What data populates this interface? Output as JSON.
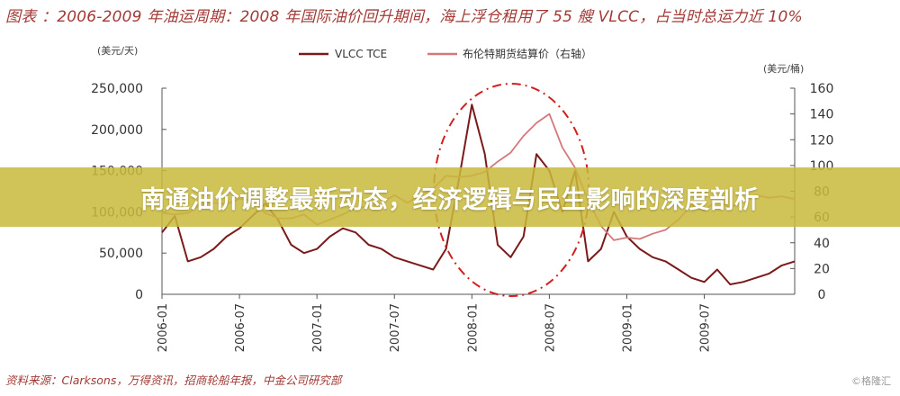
{
  "caption": "图表 ：2006-2009 年油运周期：2008 年国际油价回升期间，海上浮仓租用了 55 艘 VLCC，占当时总运力近 10%",
  "source": "资料来源：Clarksons，万得资讯，招商轮船年报，中金公司研究部",
  "watermark": "©格隆汇",
  "banner": "南通油价调整最新动态，经济逻辑与民生影响的深度剖析",
  "colors": {
    "tce": "#7b1a1a",
    "brent": "#d4787a",
    "highlight": "#d21e1e",
    "text": "#a23a36"
  },
  "chart_data": {
    "type": "line",
    "y_unit_left": "(美元/天)",
    "y_unit_right": "(美元/桶)",
    "ylim_left": [
      0,
      250000
    ],
    "ylim_right": [
      0,
      160
    ],
    "yticks_left": [
      "0",
      "50,000",
      "100,000",
      "150,000",
      "200,000",
      "250,000"
    ],
    "yticks_right": [
      "0",
      "20",
      "40",
      "60",
      "80",
      "100",
      "120",
      "140",
      "160"
    ],
    "x_ticks": [
      "2006-01",
      "2006-07",
      "2007-01",
      "2007-07",
      "2008-01",
      "2008-07",
      "2009-01",
      "2009-07"
    ],
    "x_range": [
      "2006-01",
      "2010-02"
    ],
    "legend_position": "top",
    "series": [
      {
        "name": "VLCC TCE",
        "axis": "left",
        "x": [
          "2006-01",
          "2006-02",
          "2006-03",
          "2006-04",
          "2006-05",
          "2006-06",
          "2006-07",
          "2006-08",
          "2006-09",
          "2006-10",
          "2006-11",
          "2006-12",
          "2007-01",
          "2007-02",
          "2007-03",
          "2007-04",
          "2007-05",
          "2007-06",
          "2007-07",
          "2007-08",
          "2007-09",
          "2007-10",
          "2007-11",
          "2007-12",
          "2008-01",
          "2008-02",
          "2008-03",
          "2008-04",
          "2008-05",
          "2008-06",
          "2008-07",
          "2008-08",
          "2008-09",
          "2008-10",
          "2008-11",
          "2008-12",
          "2009-01",
          "2009-02",
          "2009-03",
          "2009-04",
          "2009-05",
          "2009-06",
          "2009-07",
          "2009-08",
          "2009-09",
          "2009-10",
          "2009-11",
          "2009-12",
          "2010-01",
          "2010-02"
        ],
        "values": [
          75000,
          95000,
          40000,
          45000,
          55000,
          70000,
          80000,
          95000,
          110000,
          90000,
          60000,
          50000,
          55000,
          70000,
          80000,
          75000,
          60000,
          55000,
          45000,
          40000,
          35000,
          30000,
          55000,
          140000,
          230000,
          170000,
          60000,
          45000,
          70000,
          170000,
          150000,
          100000,
          150000,
          40000,
          55000,
          100000,
          70000,
          55000,
          45000,
          40000,
          30000,
          20000,
          15000,
          30000,
          12000,
          15000,
          20000,
          25000,
          35000,
          40000
        ]
      },
      {
        "name": "布伦特期货结算价（右轴）",
        "axis": "right",
        "x": [
          "2006-01",
          "2006-02",
          "2006-03",
          "2006-04",
          "2006-05",
          "2006-06",
          "2006-07",
          "2006-08",
          "2006-09",
          "2006-10",
          "2006-11",
          "2006-12",
          "2007-01",
          "2007-02",
          "2007-03",
          "2007-04",
          "2007-05",
          "2007-06",
          "2007-07",
          "2007-08",
          "2007-09",
          "2007-10",
          "2007-11",
          "2007-12",
          "2008-01",
          "2008-02",
          "2008-03",
          "2008-04",
          "2008-05",
          "2008-06",
          "2008-07",
          "2008-08",
          "2008-09",
          "2008-10",
          "2008-11",
          "2008-12",
          "2009-01",
          "2009-02",
          "2009-03",
          "2009-04",
          "2009-05",
          "2009-06",
          "2009-07",
          "2009-08",
          "2009-09",
          "2009-10",
          "2009-11",
          "2009-12",
          "2010-01",
          "2010-02"
        ],
        "values": [
          63,
          62,
          63,
          70,
          71,
          70,
          74,
          73,
          63,
          59,
          59,
          62,
          54,
          58,
          62,
          67,
          68,
          71,
          77,
          71,
          77,
          82,
          92,
          91,
          92,
          95,
          103,
          110,
          123,
          133,
          140,
          114,
          98,
          73,
          53,
          42,
          44,
          43,
          47,
          50,
          58,
          69,
          65,
          73,
          67,
          73,
          77,
          75,
          76,
          74
        ]
      }
    ],
    "annotation": "dash-dot ellipse highlighting the 2008 spike"
  }
}
